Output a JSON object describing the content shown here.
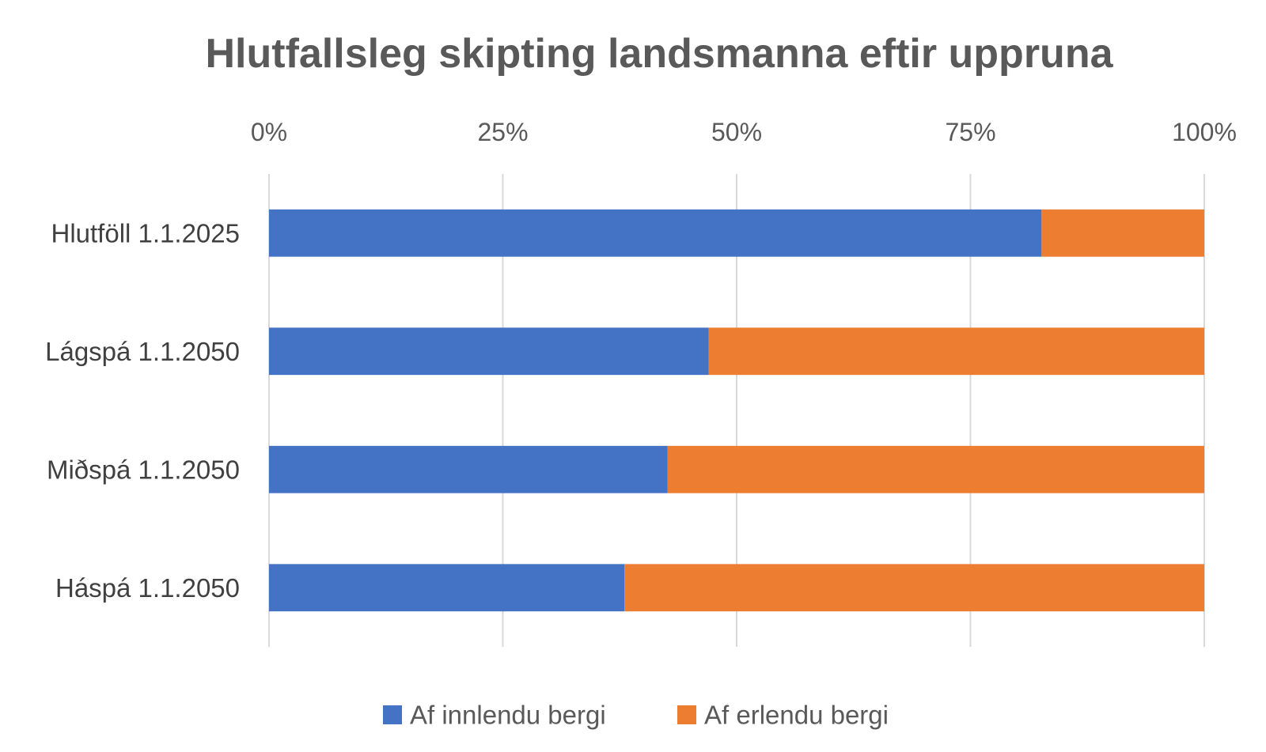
{
  "chart_data": {
    "type": "bar",
    "orientation": "horizontal",
    "stacked": "percent",
    "title": "Hlutfallsleg skipting landsmanna eftir uppruna",
    "categories": [
      "Hlutföll 1.1.2025",
      "Lágspá 1.1.2050",
      "Miðspá 1.1.2050",
      "Háspá 1.1.2050"
    ],
    "series": [
      {
        "name": "Af innlendu bergi",
        "color": "#4472C4",
        "values": [
          82.6,
          47,
          42.6,
          38
        ]
      },
      {
        "name": "Af erlendu bergi",
        "color": "#ED7D31",
        "values": [
          17.4,
          53,
          57.4,
          62
        ]
      }
    ],
    "x_ticks": [
      "0%",
      "25%",
      "50%",
      "75%",
      "100%"
    ],
    "x_tick_values": [
      0,
      25,
      50,
      75,
      100
    ],
    "xlim": [
      0,
      100
    ],
    "x_axis_position": "top",
    "grid": true,
    "legend_position": "bottom",
    "gridline_color": "#D9D9D9"
  }
}
